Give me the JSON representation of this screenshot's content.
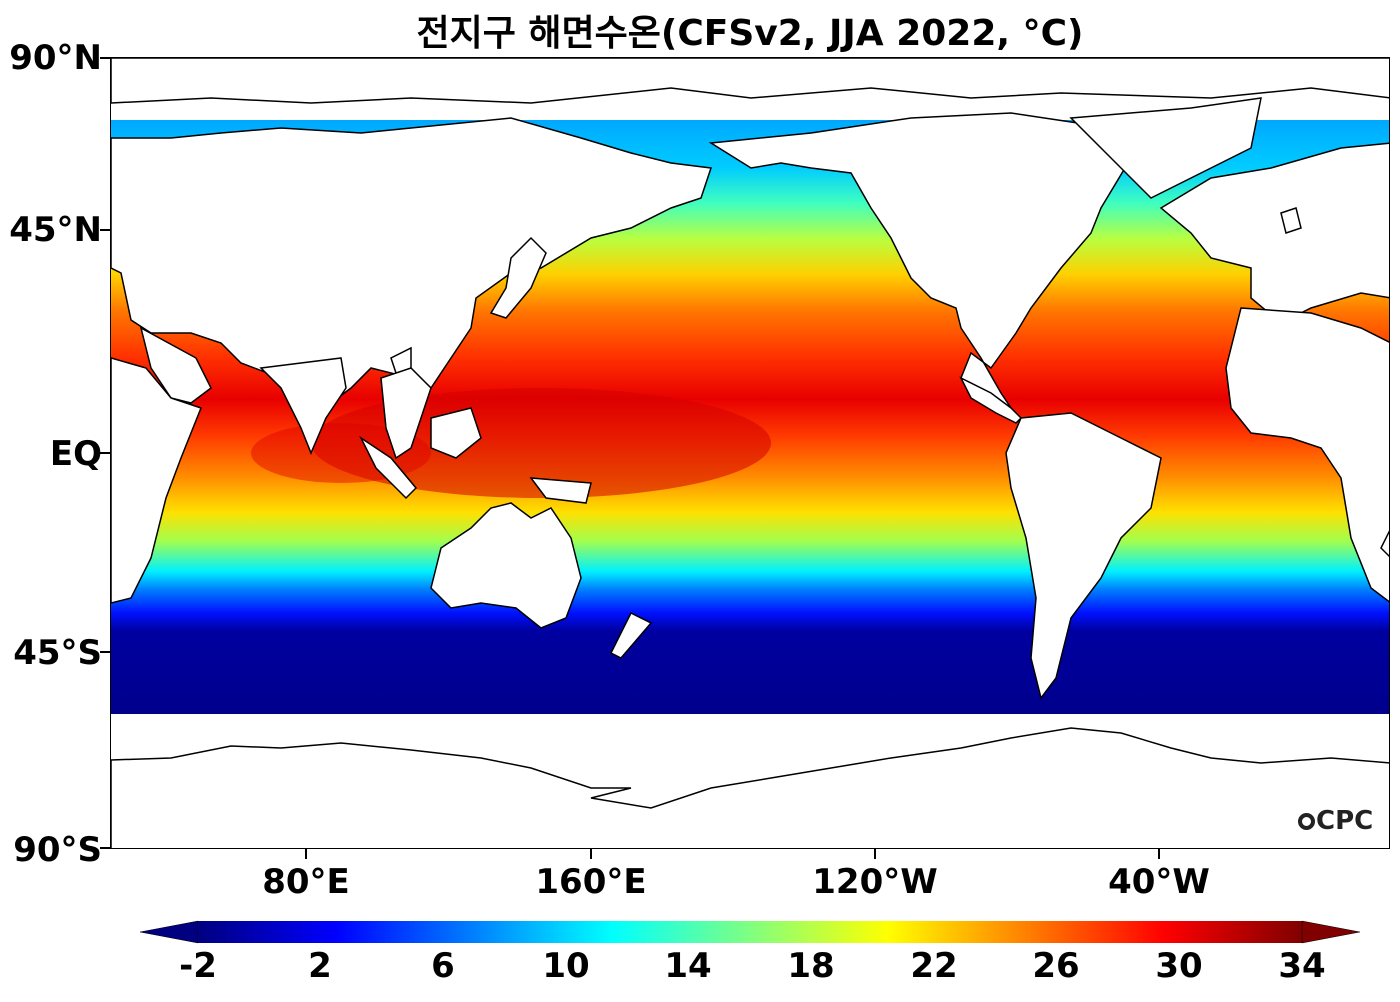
{
  "title": "전지구 해면수온(CFSv2, JJA 2022, °C)",
  "map": {
    "projection": "equirectangular",
    "central_longitude": "160°W",
    "variable": "sea surface temperature",
    "land_color": "#ffffff",
    "coastline_color": "#000000"
  },
  "axes": {
    "y_labels": [
      "90°N",
      "45°N",
      "EQ",
      "45°S",
      "90°S"
    ],
    "x_labels": [
      "80°E",
      "160°E",
      "120°W",
      "40°W"
    ]
  },
  "colorbar": {
    "colormap": "jet",
    "min": -2,
    "max": 34,
    "extend": "both",
    "tick_labels": [
      "-2",
      "2",
      "6",
      "10",
      "14",
      "18",
      "22",
      "26",
      "30",
      "34"
    ],
    "colors": [
      "#000080",
      "#0000ff",
      "#0080ff",
      "#00ffff",
      "#80ff80",
      "#ffff00",
      "#ff8000",
      "#ff0000",
      "#800000"
    ]
  },
  "watermark": "CPC"
}
